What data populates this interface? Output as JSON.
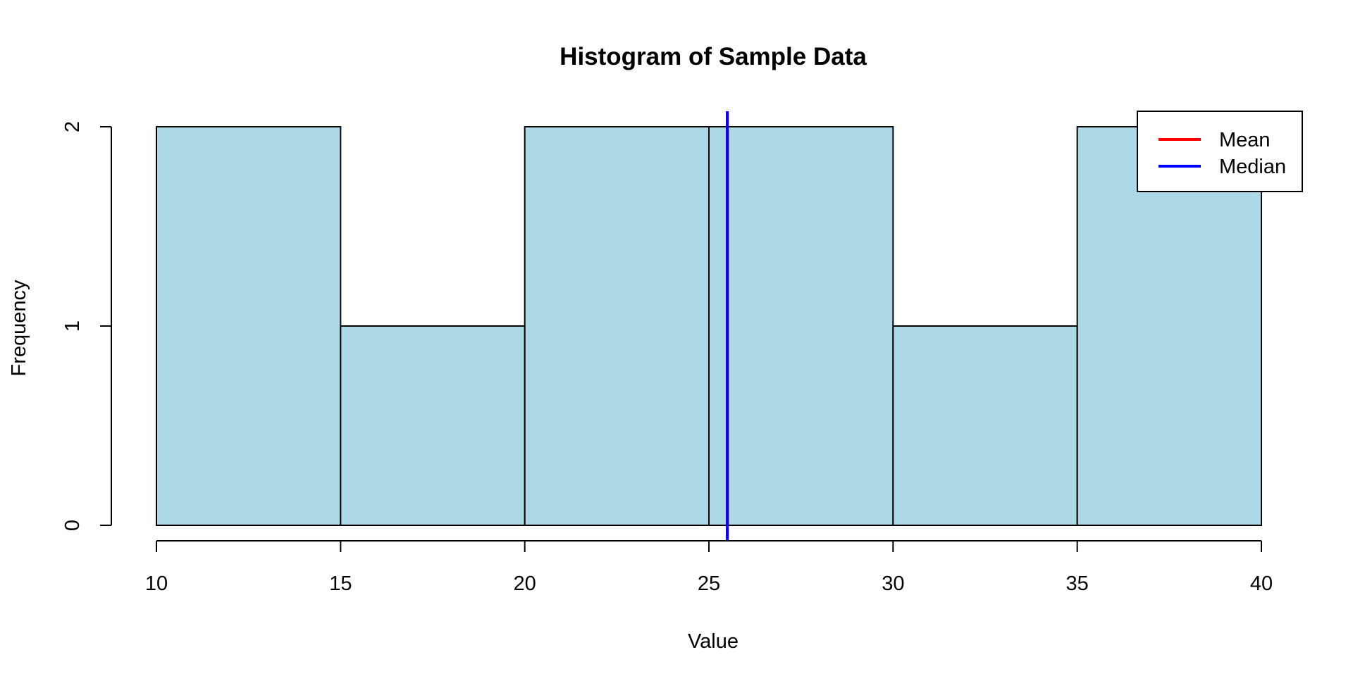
{
  "chart_data": {
    "type": "bar",
    "title": "Histogram of Sample Data",
    "xlabel": "Value",
    "ylabel": "Frequency",
    "bins": [
      {
        "from": 10,
        "to": 15,
        "count": 2
      },
      {
        "from": 15,
        "to": 20,
        "count": 1
      },
      {
        "from": 20,
        "to": 25,
        "count": 2
      },
      {
        "from": 25,
        "to": 30,
        "count": 2
      },
      {
        "from": 30,
        "to": 35,
        "count": 1
      },
      {
        "from": 35,
        "to": 40,
        "count": 2
      }
    ],
    "xlim": [
      10,
      40
    ],
    "ylim": [
      0,
      2
    ],
    "x_ticks": [
      "10",
      "15",
      "20",
      "25",
      "30",
      "35",
      "40"
    ],
    "y_ticks": [
      "0",
      "1",
      "2"
    ],
    "bar_color": "#add8e6",
    "reference_lines": [
      {
        "name": "Mean",
        "x": 25.5,
        "color": "#ff0000"
      },
      {
        "name": "Median",
        "x": 25.5,
        "color": "#0000ff"
      }
    ],
    "legend": {
      "placement": "top-right",
      "items": [
        {
          "label": "Mean",
          "color": "#ff0000"
        },
        {
          "label": "Median",
          "color": "#0000ff"
        }
      ]
    },
    "grid": false
  }
}
